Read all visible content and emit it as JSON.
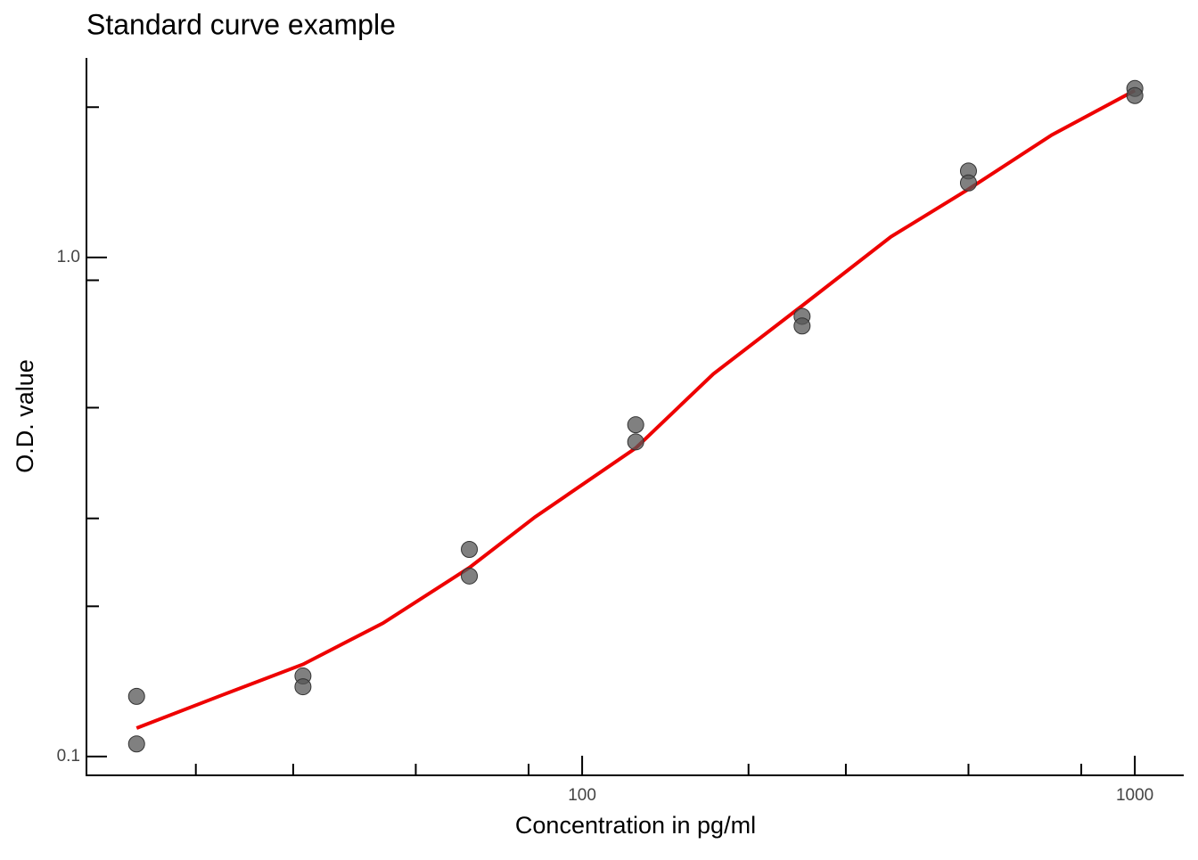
{
  "chart_data": {
    "type": "scatter",
    "title": "Standard curve example",
    "x_label": "Concentration in pg/ml",
    "y_label": "O.D. value",
    "log_x": true,
    "log_y": true,
    "xlim": [
      12.68,
      1226
    ],
    "ylim": [
      0.0917,
      2.51
    ],
    "xticks": [
      100,
      1000
    ],
    "yticks": [
      0.1,
      {
        "value": 1,
        "label": "1.0"
      }
    ],
    "xminor": [
      20,
      30,
      50,
      80,
      200,
      300,
      500,
      800
    ],
    "yminor": [
      0.2,
      0.3,
      0.5,
      0.9,
      2
    ],
    "points": {
      "color": "#555555",
      "x": [
        15.625,
        15.625,
        31.25,
        31.25,
        62.5,
        62.5,
        125,
        125,
        250,
        250,
        500,
        500,
        1000,
        1000
      ],
      "y": [
        0.132,
        0.106,
        0.145,
        0.138,
        0.26,
        0.23,
        0.462,
        0.427,
        0.762,
        0.729,
        1.49,
        1.41,
        2.18,
        2.11
      ]
    },
    "fit": {
      "color": "#ee0000",
      "x": [
        15.625,
        22.4,
        31.25,
        43.6,
        62.5,
        82.2,
        125,
        172.7,
        250,
        362,
        500,
        708,
        1000
      ],
      "y": [
        0.114,
        0.133,
        0.153,
        0.185,
        0.239,
        0.302,
        0.415,
        0.584,
        0.8,
        1.1,
        1.37,
        1.76,
        2.16
      ]
    }
  }
}
